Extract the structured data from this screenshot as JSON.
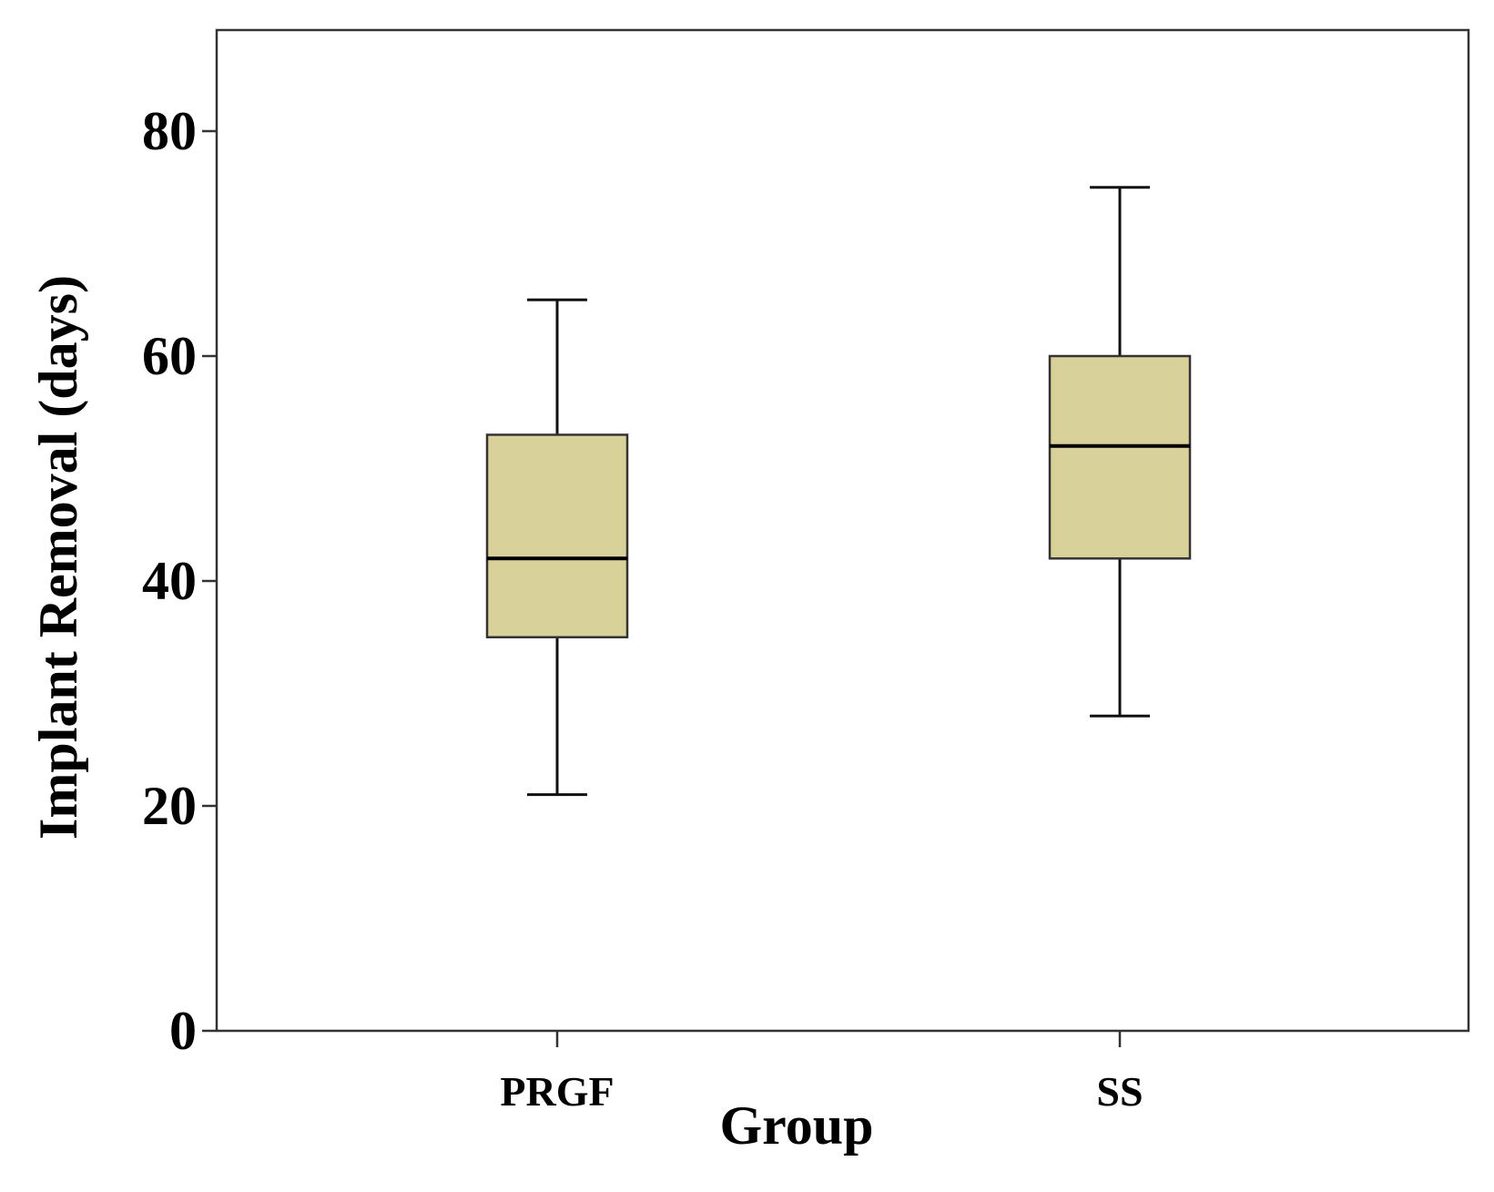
{
  "chart_data": {
    "type": "box",
    "title": "",
    "xlabel": "Group",
    "ylabel": "Implant Removal (days)",
    "ylim": [
      0,
      89
    ],
    "yticks": [
      0,
      20,
      40,
      60,
      80
    ],
    "grid": false,
    "categories": [
      "PRGF",
      "SS"
    ],
    "boxes": [
      {
        "category": "PRGF",
        "min": 21,
        "q1": 35,
        "median": 42,
        "q3": 53,
        "max": 65
      },
      {
        "category": "SS",
        "min": 28,
        "q1": 42,
        "median": 52,
        "q3": 60,
        "max": 75
      }
    ],
    "colors": {
      "box_fill": "#d8d29a",
      "box_stroke": "#333333",
      "axis": "#333333",
      "text": "#000000"
    }
  }
}
